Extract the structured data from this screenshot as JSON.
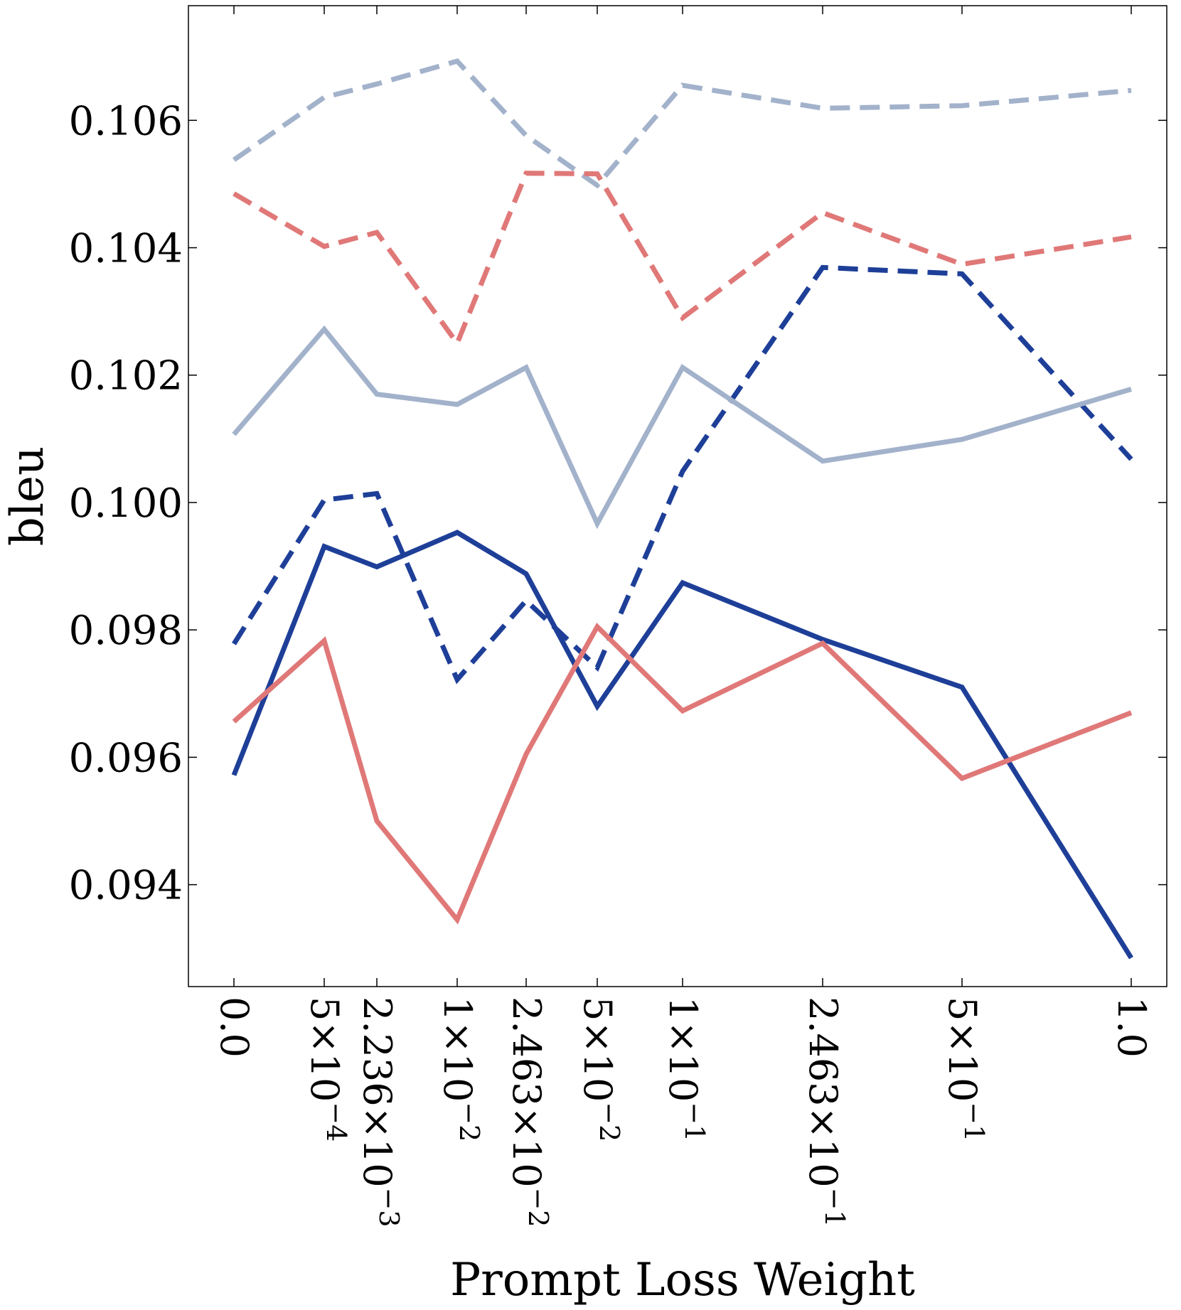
{
  "chart_data": {
    "type": "line",
    "title": "",
    "xlabel": "Prompt Loss Weight",
    "ylabel": "bleu",
    "ylim": [
      0.0924,
      0.1078
    ],
    "grid": false,
    "legend": "none",
    "categories": [
      {
        "base": "0.0",
        "exp": ""
      },
      {
        "base": "5×10",
        "exp": "−4"
      },
      {
        "base": "2.236×10",
        "exp": "−3"
      },
      {
        "base": "1×10",
        "exp": "−2"
      },
      {
        "base": "2.463×10",
        "exp": "−2"
      },
      {
        "base": "5×10",
        "exp": "−2"
      },
      {
        "base": "1×10",
        "exp": "−1"
      },
      {
        "base": "2.463×10",
        "exp": "−1"
      },
      {
        "base": "5×10",
        "exp": "−1"
      },
      {
        "base": "1.0",
        "exp": ""
      }
    ],
    "yticks": [
      "0.094",
      "0.096",
      "0.098",
      "0.100",
      "0.102",
      "0.104",
      "0.106"
    ],
    "series": [
      {
        "name": "light-blue-dashed",
        "color": "#a3b2cb",
        "dashed": true,
        "values": [
          0.10538,
          0.10636,
          0.10657,
          0.10693,
          0.10576,
          0.10498,
          0.10655,
          0.10619,
          0.10623,
          0.10647
        ]
      },
      {
        "name": "red-dashed",
        "color": "#e07878",
        "dashed": true,
        "values": [
          0.10485,
          0.10402,
          0.10424,
          0.1025,
          0.10517,
          0.10516,
          0.1029,
          0.10455,
          0.10374,
          0.10417
        ]
      },
      {
        "name": "dark-blue-dashed",
        "color": "#1e3f98",
        "dashed": true,
        "values": [
          0.09778,
          0.10004,
          0.10014,
          0.09722,
          0.09846,
          0.09741,
          0.10049,
          0.10369,
          0.10359,
          0.10068
        ]
      },
      {
        "name": "light-blue-solid",
        "color": "#a3b2cb",
        "dashed": false,
        "values": [
          0.10107,
          0.10272,
          0.1017,
          0.10154,
          0.10212,
          0.09967,
          0.10212,
          0.10065,
          0.10099,
          0.10178
        ]
      },
      {
        "name": "dark-blue-solid",
        "color": "#1e3f98",
        "dashed": false,
        "values": [
          0.09572,
          0.09931,
          0.09899,
          0.09953,
          0.09888,
          0.0968,
          0.09874,
          0.09785,
          0.0971,
          0.09285
        ]
      },
      {
        "name": "red-solid",
        "color": "#e07878",
        "dashed": false,
        "values": [
          0.09656,
          0.09783,
          0.095,
          0.09345,
          0.09605,
          0.09805,
          0.09673,
          0.09779,
          0.09567,
          0.0967
        ]
      }
    ]
  }
}
